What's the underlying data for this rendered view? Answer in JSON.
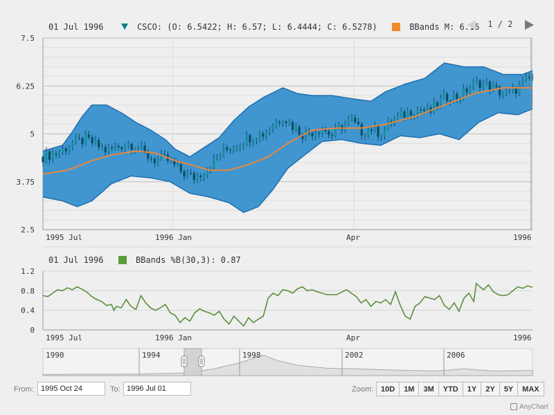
{
  "legend_top": {
    "date": "01 Jul 1996",
    "series": "CSCO: (O: 6.5422; H: 6.57; L: 6.4444; C: 6.5278)",
    "bbands": "BBands M: 6.16",
    "page": "1 / 2"
  },
  "legend_bottom": {
    "date": "01 Jul 1996",
    "series": "BBands %B(30,3): 0.87"
  },
  "controls": {
    "from_label": "From:",
    "from_value": "1995 Oct 24",
    "to_label": "To:",
    "to_value": "1996 Jul 01",
    "zoom_label": "Zoom:"
  },
  "zoom_buttons": [
    "10D",
    "1M",
    "3M",
    "YTD",
    "1Y",
    "2Y",
    "5Y",
    "MAX"
  ],
  "credit": "AnyChart",
  "colors": {
    "band": "#2e8ccc",
    "band_edge": "#1f6fae",
    "middle": "#e8883a",
    "candle": "#0a5f73",
    "percent_b": "#5a8f3c",
    "grid": "#c8c8c8"
  },
  "chart_data": [
    {
      "type": "candlestick",
      "ylim": [
        2.5,
        7.5
      ],
      "yticks": [
        "7.5",
        "6.25",
        "5",
        "3.75",
        "2.5"
      ],
      "xticks": [
        "1995 Jul",
        "1996 Jan",
        "Apr",
        "1996"
      ],
      "x_range": [
        "1995-07-01",
        "1996-07-01"
      ],
      "bbands_upper": [
        [
          0,
          4.55
        ],
        [
          0.04,
          4.7
        ],
        [
          0.06,
          5.05
        ],
        [
          0.08,
          5.45
        ],
        [
          0.1,
          5.75
        ],
        [
          0.13,
          5.75
        ],
        [
          0.16,
          5.55
        ],
        [
          0.19,
          5.3
        ],
        [
          0.22,
          5.1
        ],
        [
          0.25,
          4.85
        ],
        [
          0.27,
          4.6
        ],
        [
          0.3,
          4.4
        ],
        [
          0.33,
          4.65
        ],
        [
          0.36,
          4.9
        ],
        [
          0.39,
          5.35
        ],
        [
          0.42,
          5.7
        ],
        [
          0.45,
          5.95
        ],
        [
          0.49,
          6.2
        ],
        [
          0.52,
          6.05
        ],
        [
          0.55,
          6.0
        ],
        [
          0.59,
          6.0
        ],
        [
          0.64,
          5.9
        ],
        [
          0.67,
          5.85
        ],
        [
          0.7,
          6.1
        ],
        [
          0.74,
          6.3
        ],
        [
          0.78,
          6.45
        ],
        [
          0.82,
          6.85
        ],
        [
          0.86,
          6.75
        ],
        [
          0.9,
          6.75
        ],
        [
          0.94,
          6.55
        ],
        [
          0.98,
          6.55
        ],
        [
          1.0,
          6.65
        ]
      ],
      "bbands_middle": [
        [
          0,
          3.95
        ],
        [
          0.05,
          4.05
        ],
        [
          0.1,
          4.3
        ],
        [
          0.14,
          4.45
        ],
        [
          0.19,
          4.55
        ],
        [
          0.23,
          4.5
        ],
        [
          0.27,
          4.3
        ],
        [
          0.3,
          4.2
        ],
        [
          0.34,
          4.05
        ],
        [
          0.38,
          4.05
        ],
        [
          0.42,
          4.2
        ],
        [
          0.46,
          4.4
        ],
        [
          0.5,
          4.75
        ],
        [
          0.55,
          5.1
        ],
        [
          0.6,
          5.15
        ],
        [
          0.65,
          5.15
        ],
        [
          0.7,
          5.25
        ],
        [
          0.76,
          5.45
        ],
        [
          0.82,
          5.75
        ],
        [
          0.88,
          6.05
        ],
        [
          0.94,
          6.2
        ],
        [
          1.0,
          6.2
        ]
      ],
      "bbands_lower": [
        [
          0,
          3.35
        ],
        [
          0.04,
          3.25
        ],
        [
          0.07,
          3.1
        ],
        [
          0.1,
          3.25
        ],
        [
          0.14,
          3.7
        ],
        [
          0.18,
          3.9
        ],
        [
          0.22,
          3.85
        ],
        [
          0.26,
          3.75
        ],
        [
          0.3,
          3.45
        ],
        [
          0.34,
          3.35
        ],
        [
          0.38,
          3.2
        ],
        [
          0.41,
          2.95
        ],
        [
          0.44,
          3.1
        ],
        [
          0.47,
          3.55
        ],
        [
          0.5,
          4.1
        ],
        [
          0.53,
          4.4
        ],
        [
          0.57,
          4.8
        ],
        [
          0.61,
          4.85
        ],
        [
          0.65,
          4.75
        ],
        [
          0.69,
          4.7
        ],
        [
          0.73,
          4.95
        ],
        [
          0.77,
          4.9
        ],
        [
          0.81,
          5.0
        ],
        [
          0.85,
          4.85
        ],
        [
          0.89,
          5.3
        ],
        [
          0.93,
          5.55
        ],
        [
          0.97,
          5.5
        ],
        [
          1.0,
          5.65
        ]
      ],
      "close_path": [
        [
          0,
          4.4
        ],
        [
          0.03,
          4.5
        ],
        [
          0.06,
          4.75
        ],
        [
          0.09,
          4.85
        ],
        [
          0.11,
          4.7
        ],
        [
          0.13,
          4.55
        ],
        [
          0.15,
          4.65
        ],
        [
          0.17,
          4.75
        ],
        [
          0.19,
          4.7
        ],
        [
          0.21,
          4.45
        ],
        [
          0.23,
          4.3
        ],
        [
          0.25,
          4.35
        ],
        [
          0.27,
          4.15
        ],
        [
          0.29,
          3.95
        ],
        [
          0.31,
          3.85
        ],
        [
          0.33,
          4.05
        ],
        [
          0.35,
          4.3
        ],
        [
          0.37,
          4.55
        ],
        [
          0.39,
          4.7
        ],
        [
          0.41,
          4.85
        ],
        [
          0.43,
          4.95
        ],
        [
          0.45,
          5.0
        ],
        [
          0.47,
          5.25
        ],
        [
          0.49,
          5.45
        ],
        [
          0.51,
          5.2
        ],
        [
          0.53,
          5.0
        ],
        [
          0.55,
          5.05
        ],
        [
          0.57,
          5.15
        ],
        [
          0.59,
          4.95
        ],
        [
          0.61,
          5.2
        ],
        [
          0.63,
          5.35
        ],
        [
          0.65,
          5.05
        ],
        [
          0.67,
          5.15
        ],
        [
          0.69,
          5.0
        ],
        [
          0.71,
          5.3
        ],
        [
          0.73,
          5.45
        ],
        [
          0.75,
          5.6
        ],
        [
          0.77,
          5.65
        ],
        [
          0.79,
          5.55
        ],
        [
          0.81,
          5.85
        ],
        [
          0.83,
          6.0
        ],
        [
          0.85,
          5.95
        ],
        [
          0.87,
          6.2
        ],
        [
          0.89,
          6.35
        ],
        [
          0.91,
          6.25
        ],
        [
          0.93,
          6.1
        ],
        [
          0.95,
          6.0
        ],
        [
          0.97,
          6.2
        ],
        [
          1.0,
          6.5
        ]
      ]
    },
    {
      "type": "line",
      "ylim": [
        0,
        1.2
      ],
      "yticks": [
        "1.2",
        "0.8",
        "0.4",
        "0"
      ],
      "xticks": [
        "1995 Jul",
        "1996 Jan",
        "Apr",
        "1996"
      ],
      "x_range": [
        "1995-07-01",
        "1996-07-01"
      ],
      "percent_b": [
        [
          0,
          0.7
        ],
        [
          0.01,
          0.68
        ],
        [
          0.02,
          0.75
        ],
        [
          0.03,
          0.82
        ],
        [
          0.04,
          0.8
        ],
        [
          0.05,
          0.86
        ],
        [
          0.06,
          0.82
        ],
        [
          0.07,
          0.88
        ],
        [
          0.08,
          0.83
        ],
        [
          0.09,
          0.77
        ],
        [
          0.1,
          0.68
        ],
        [
          0.11,
          0.62
        ],
        [
          0.12,
          0.58
        ],
        [
          0.13,
          0.5
        ],
        [
          0.14,
          0.52
        ],
        [
          0.145,
          0.4
        ],
        [
          0.15,
          0.48
        ],
        [
          0.16,
          0.45
        ],
        [
          0.17,
          0.62
        ],
        [
          0.18,
          0.48
        ],
        [
          0.19,
          0.42
        ],
        [
          0.2,
          0.7
        ],
        [
          0.21,
          0.55
        ],
        [
          0.22,
          0.45
        ],
        [
          0.23,
          0.4
        ],
        [
          0.24,
          0.45
        ],
        [
          0.25,
          0.52
        ],
        [
          0.26,
          0.35
        ],
        [
          0.27,
          0.3
        ],
        [
          0.28,
          0.15
        ],
        [
          0.29,
          0.25
        ],
        [
          0.3,
          0.18
        ],
        [
          0.31,
          0.35
        ],
        [
          0.32,
          0.43
        ],
        [
          0.33,
          0.38
        ],
        [
          0.34,
          0.35
        ],
        [
          0.35,
          0.3
        ],
        [
          0.36,
          0.38
        ],
        [
          0.37,
          0.22
        ],
        [
          0.38,
          0.12
        ],
        [
          0.39,
          0.28
        ],
        [
          0.4,
          0.18
        ],
        [
          0.41,
          0.08
        ],
        [
          0.42,
          0.25
        ],
        [
          0.43,
          0.15
        ],
        [
          0.44,
          0.22
        ],
        [
          0.45,
          0.28
        ],
        [
          0.46,
          0.65
        ],
        [
          0.47,
          0.75
        ],
        [
          0.48,
          0.7
        ],
        [
          0.49,
          0.82
        ],
        [
          0.5,
          0.8
        ],
        [
          0.51,
          0.75
        ],
        [
          0.52,
          0.84
        ],
        [
          0.53,
          0.88
        ],
        [
          0.54,
          0.8
        ],
        [
          0.55,
          0.82
        ],
        [
          0.56,
          0.78
        ],
        [
          0.58,
          0.72
        ],
        [
          0.6,
          0.72
        ],
        [
          0.62,
          0.82
        ],
        [
          0.63,
          0.75
        ],
        [
          0.64,
          0.68
        ],
        [
          0.65,
          0.55
        ],
        [
          0.66,
          0.62
        ],
        [
          0.67,
          0.48
        ],
        [
          0.68,
          0.58
        ],
        [
          0.69,
          0.55
        ],
        [
          0.7,
          0.62
        ],
        [
          0.71,
          0.52
        ],
        [
          0.72,
          0.78
        ],
        [
          0.73,
          0.5
        ],
        [
          0.74,
          0.28
        ],
        [
          0.75,
          0.22
        ],
        [
          0.76,
          0.48
        ],
        [
          0.77,
          0.55
        ],
        [
          0.78,
          0.68
        ],
        [
          0.79,
          0.65
        ],
        [
          0.8,
          0.62
        ],
        [
          0.81,
          0.7
        ],
        [
          0.82,
          0.5
        ],
        [
          0.83,
          0.42
        ],
        [
          0.84,
          0.55
        ],
        [
          0.85,
          0.38
        ],
        [
          0.86,
          0.65
        ],
        [
          0.87,
          0.75
        ],
        [
          0.88,
          0.58
        ],
        [
          0.885,
          0.95
        ],
        [
          0.89,
          0.9
        ],
        [
          0.9,
          0.82
        ],
        [
          0.91,
          0.92
        ],
        [
          0.92,
          0.78
        ],
        [
          0.93,
          0.72
        ],
        [
          0.94,
          0.7
        ],
        [
          0.95,
          0.72
        ],
        [
          0.96,
          0.8
        ],
        [
          0.97,
          0.88
        ],
        [
          0.98,
          0.85
        ],
        [
          0.99,
          0.9
        ],
        [
          1.0,
          0.87
        ]
      ]
    },
    {
      "type": "area",
      "name": "scroller",
      "xticks": [
        "1990",
        "1994",
        "1998",
        "2002",
        "2006"
      ],
      "selection": [
        "1995-10-24",
        "1996-07-01"
      ],
      "profile": [
        [
          0,
          0.05
        ],
        [
          0.1,
          0.06
        ],
        [
          0.2,
          0.07
        ],
        [
          0.3,
          0.12
        ],
        [
          0.35,
          0.3
        ],
        [
          0.4,
          0.55
        ],
        [
          0.45,
          0.9
        ],
        [
          0.48,
          0.65
        ],
        [
          0.52,
          0.45
        ],
        [
          0.58,
          0.32
        ],
        [
          0.64,
          0.3
        ],
        [
          0.7,
          0.25
        ],
        [
          0.8,
          0.2
        ],
        [
          0.86,
          0.3
        ],
        [
          0.92,
          0.2
        ],
        [
          1.0,
          0.22
        ]
      ]
    }
  ]
}
